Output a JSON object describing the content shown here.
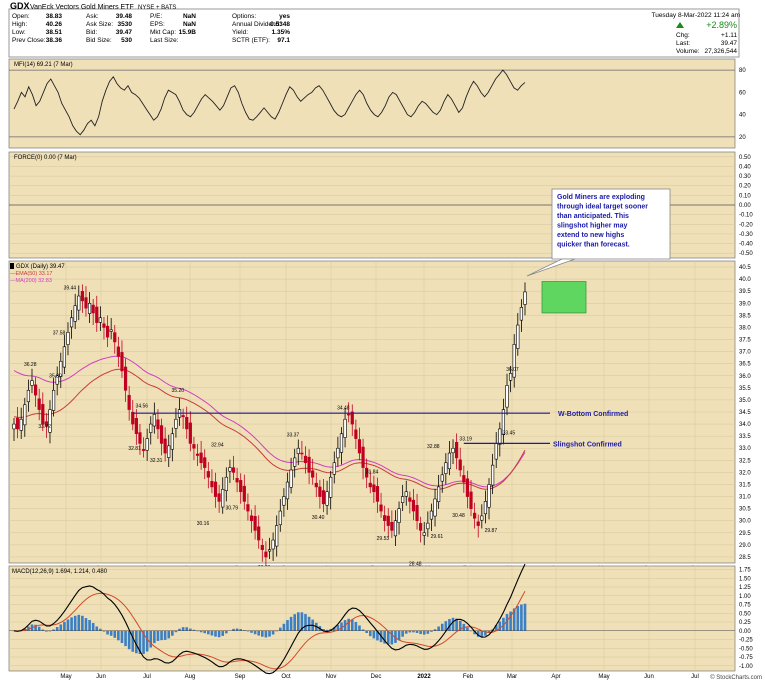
{
  "header": {
    "symbol": "GDX",
    "name": "VanEck Vectors Gold Miners ETF",
    "exchange": "NYSE + BATS",
    "date": "Tuesday  8-Mar-2022  11:24 am",
    "chg_pct": "+2.89%",
    "chg_label": "Chg:",
    "chg": "+1.11",
    "last_label": "Last:",
    "last": "39.47",
    "volume_label": "Volume:",
    "volume": "27,326,544",
    "quote_rows": [
      [
        "Open:",
        "38.83",
        "Ask:",
        "39.48",
        "P/E:",
        "NaN",
        "Options:",
        "yes"
      ],
      [
        "High:",
        "40.26",
        "Ask Size:",
        "3530",
        "EPS:",
        "NaN",
        "Annual Dividend:",
        "0.5348"
      ],
      [
        "Low:",
        "38.51",
        "Bid:",
        "39.47",
        "Mkt Cap:",
        "15.9B",
        "Yield:",
        "1.35%"
      ],
      [
        "Prev Close:",
        "38.36",
        "Bid Size:",
        "530",
        "Last Size:",
        "",
        "SCTR (ETF):",
        "97.1"
      ]
    ],
    "watermark": "© StockCharts.com"
  },
  "colors": {
    "panel_bg": "#efe0b8",
    "grid": "#d7c69a",
    "up": "#000000",
    "down": "#c00020",
    "ema": "#c83c3c",
    "ma": "#d040c0",
    "annotation": "#1a1aa8",
    "target_box": "#5fd65f"
  },
  "chart_data": [
    {
      "type": "line",
      "title": "MFI(14) 69.21 (7 Mar)",
      "ylim": [
        10,
        90
      ],
      "y_ticks": [
        "80",
        "60",
        "40",
        "20"
      ],
      "reference_lines": [
        80,
        20
      ],
      "values": [
        45,
        52,
        60,
        56,
        65,
        58,
        48,
        52,
        60,
        68,
        72,
        66,
        60,
        50,
        44,
        38,
        30,
        25,
        22,
        26,
        32,
        35,
        30,
        38,
        52,
        62,
        70,
        74,
        68,
        64,
        62,
        66,
        60,
        58,
        55,
        50,
        45,
        40,
        35,
        38,
        45,
        55,
        62,
        60,
        58,
        52,
        44,
        40,
        38,
        42,
        48,
        54,
        58,
        55,
        52,
        48,
        44,
        48,
        56,
        64,
        66,
        60,
        50,
        42,
        36,
        35,
        38,
        42,
        46,
        42,
        38,
        36,
        42,
        50,
        58,
        65,
        62,
        56,
        52,
        55,
        58,
        60,
        64,
        66,
        62,
        56,
        50,
        44,
        40,
        38,
        40,
        46,
        52,
        58,
        62,
        58,
        50,
        44,
        40,
        38,
        42,
        48,
        56,
        60,
        58,
        52,
        46,
        40,
        38,
        42,
        48,
        52,
        50,
        46,
        42,
        40,
        44,
        52,
        58,
        54,
        48,
        42,
        46,
        56,
        64,
        70,
        66,
        60,
        56,
        60,
        66,
        72,
        76,
        80,
        76,
        70,
        64,
        62,
        66,
        69
      ]
    },
    {
      "type": "line",
      "title": "FORCE(0) 0.00 (7 Mar)",
      "ylim": [
        -0.55,
        0.55
      ],
      "y_ticks": [
        "0.50",
        "0.40",
        "0.30",
        "0.20",
        "0.10",
        "0.00",
        "-0.10",
        "-0.20",
        "-0.30",
        "-0.40",
        "-0.50"
      ],
      "values": [
        0,
        0
      ]
    },
    {
      "type": "candlestick",
      "title": "GDX (Daily) 39.47",
      "legend": [
        "EMA(50) 33.17",
        "MA(200) 32.83"
      ],
      "ylim": [
        28.25,
        40.75
      ],
      "y_ticks": [
        "40.5",
        "40.0",
        "39.5",
        "39.0",
        "38.5",
        "38.0",
        "37.5",
        "37.0",
        "36.5",
        "36.0",
        "35.5",
        "35.0",
        "34.5",
        "34.0",
        "33.5",
        "33.0",
        "32.5",
        "32.0",
        "31.5",
        "31.0",
        "30.5",
        "30.0",
        "29.5",
        "29.0",
        "28.5"
      ],
      "x_ticks": [
        "May",
        "Jun",
        "Jul",
        "Aug",
        "Sep",
        "Oct",
        "Nov",
        "Dec",
        "2022",
        "Feb",
        "Mar",
        "Apr",
        "May",
        "Jun",
        "Jul"
      ],
      "close": [
        34.0,
        33.8,
        34.2,
        34.8,
        35.4,
        35.8,
        35.2,
        34.6,
        34.0,
        33.9,
        34.6,
        35.4,
        36.0,
        36.6,
        37.2,
        37.8,
        38.4,
        38.9,
        39.3,
        39.1,
        38.8,
        39.0,
        38.6,
        38.2,
        38.4,
        38.0,
        37.6,
        37.9,
        37.4,
        36.8,
        36.2,
        35.4,
        34.6,
        34.0,
        33.6,
        33.2,
        32.9,
        33.4,
        34.0,
        34.4,
        33.8,
        33.2,
        32.8,
        33.1,
        33.6,
        34.2,
        34.6,
        34.3,
        33.8,
        33.2,
        33.0,
        32.7,
        32.4,
        32.2,
        31.8,
        31.4,
        31.0,
        30.8,
        31.3,
        31.8,
        32.2,
        32.0,
        31.6,
        31.2,
        30.8,
        30.4,
        30.0,
        29.6,
        29.2,
        28.8,
        28.5,
        28.8,
        29.2,
        29.8,
        30.4,
        31.0,
        31.6,
        32.1,
        32.6,
        33.0,
        32.8,
        32.4,
        32.0,
        31.8,
        31.4,
        31.0,
        30.7,
        31.2,
        31.8,
        32.4,
        33.0,
        33.6,
        34.2,
        34.4,
        34.0,
        33.4,
        32.8,
        32.2,
        31.8,
        31.4,
        31.2,
        30.8,
        30.4,
        30.0,
        29.8,
        29.6,
        30.0,
        30.5,
        31.0,
        31.2,
        30.8,
        30.4,
        30.0,
        29.6,
        29.5,
        29.9,
        30.4,
        30.9,
        31.4,
        31.9,
        32.4,
        32.8,
        33.0,
        32.6,
        32.1,
        31.6,
        31.0,
        30.5,
        30.1,
        29.8,
        30.2,
        30.8,
        31.5,
        32.3,
        33.2,
        33.8,
        34.6,
        35.6,
        36.1,
        37.3,
        38.1,
        38.83,
        39.47
      ]
    },
    {
      "type": "line",
      "title": "MACD(12,26,9) 1.694, 1.214, 0.480",
      "ylim": [
        -1.15,
        1.85
      ],
      "y_ticks": [
        "1.75",
        "1.50",
        "1.25",
        "1.00",
        "0.75",
        "0.50",
        "0.25",
        "0.00",
        "-0.25",
        "-0.50",
        "-0.75",
        "-1.00"
      ],
      "x_ticks": [
        "May",
        "Jun",
        "Jul",
        "Aug",
        "Sep",
        "Oct",
        "Nov",
        "Dec",
        "2022",
        "Feb",
        "Mar",
        "Apr",
        "May",
        "Jun",
        "Jul"
      ],
      "series": [
        {
          "name": "MACD",
          "values": []
        },
        {
          "name": "Signal",
          "values": []
        },
        {
          "name": "Histogram",
          "values": []
        }
      ]
    }
  ],
  "price_labels": [
    {
      "text": "36.28",
      "i": 5,
      "v": 36.28
    },
    {
      "text": "33.72",
      "i": 9,
      "v": 33.72
    },
    {
      "text": "35.80",
      "i": 12,
      "v": 35.8
    },
    {
      "text": "37.58",
      "i": 13,
      "v": 37.58
    },
    {
      "text": "39.44",
      "i": 16,
      "v": 39.44
    },
    {
      "text": "34.56",
      "i": 36,
      "v": 34.56
    },
    {
      "text": "32.81",
      "i": 34,
      "v": 32.81
    },
    {
      "text": "35.20",
      "i": 46,
      "v": 35.2
    },
    {
      "text": "32.31",
      "i": 40,
      "v": 32.31
    },
    {
      "text": "32.94",
      "i": 57,
      "v": 32.94
    },
    {
      "text": "30.79",
      "i": 61,
      "v": 30.79
    },
    {
      "text": "30.16",
      "i": 53,
      "v": 30.16
    },
    {
      "text": "28.33",
      "i": 70,
      "v": 28.33
    },
    {
      "text": "33.37",
      "i": 78,
      "v": 33.37
    },
    {
      "text": "30.40",
      "i": 85,
      "v": 30.4
    },
    {
      "text": "34.48",
      "i": 92,
      "v": 34.48
    },
    {
      "text": "31.84",
      "i": 100,
      "v": 31.84
    },
    {
      "text": "29.53",
      "i": 103,
      "v": 29.53
    },
    {
      "text": "28.48",
      "i": 112,
      "v": 28.48
    },
    {
      "text": "32.88",
      "i": 117,
      "v": 32.88
    },
    {
      "text": "29.61",
      "i": 118,
      "v": 29.61
    },
    {
      "text": "33.19",
      "i": 126,
      "v": 33.19
    },
    {
      "text": "30.48",
      "i": 124,
      "v": 30.48
    },
    {
      "text": "29.87",
      "i": 133,
      "v": 29.87
    },
    {
      "text": "36.07",
      "i": 139,
      "v": 36.07
    },
    {
      "text": "33.45",
      "i": 138,
      "v": 33.45
    }
  ],
  "annotations": {
    "callout": [
      "Gold Miners are exploding",
      "through ideal target sooner",
      "than anticipated. This",
      "slingshot higher may",
      "extend to new highs",
      "quicker than forecast."
    ],
    "w_bottom": {
      "text": "W-Bottom Confirmed",
      "level": 34.45
    },
    "slingshot": {
      "text": "Slingshot Confirmed",
      "level": 33.2
    },
    "target_box": {
      "low": 38.6,
      "high": 39.9
    }
  }
}
